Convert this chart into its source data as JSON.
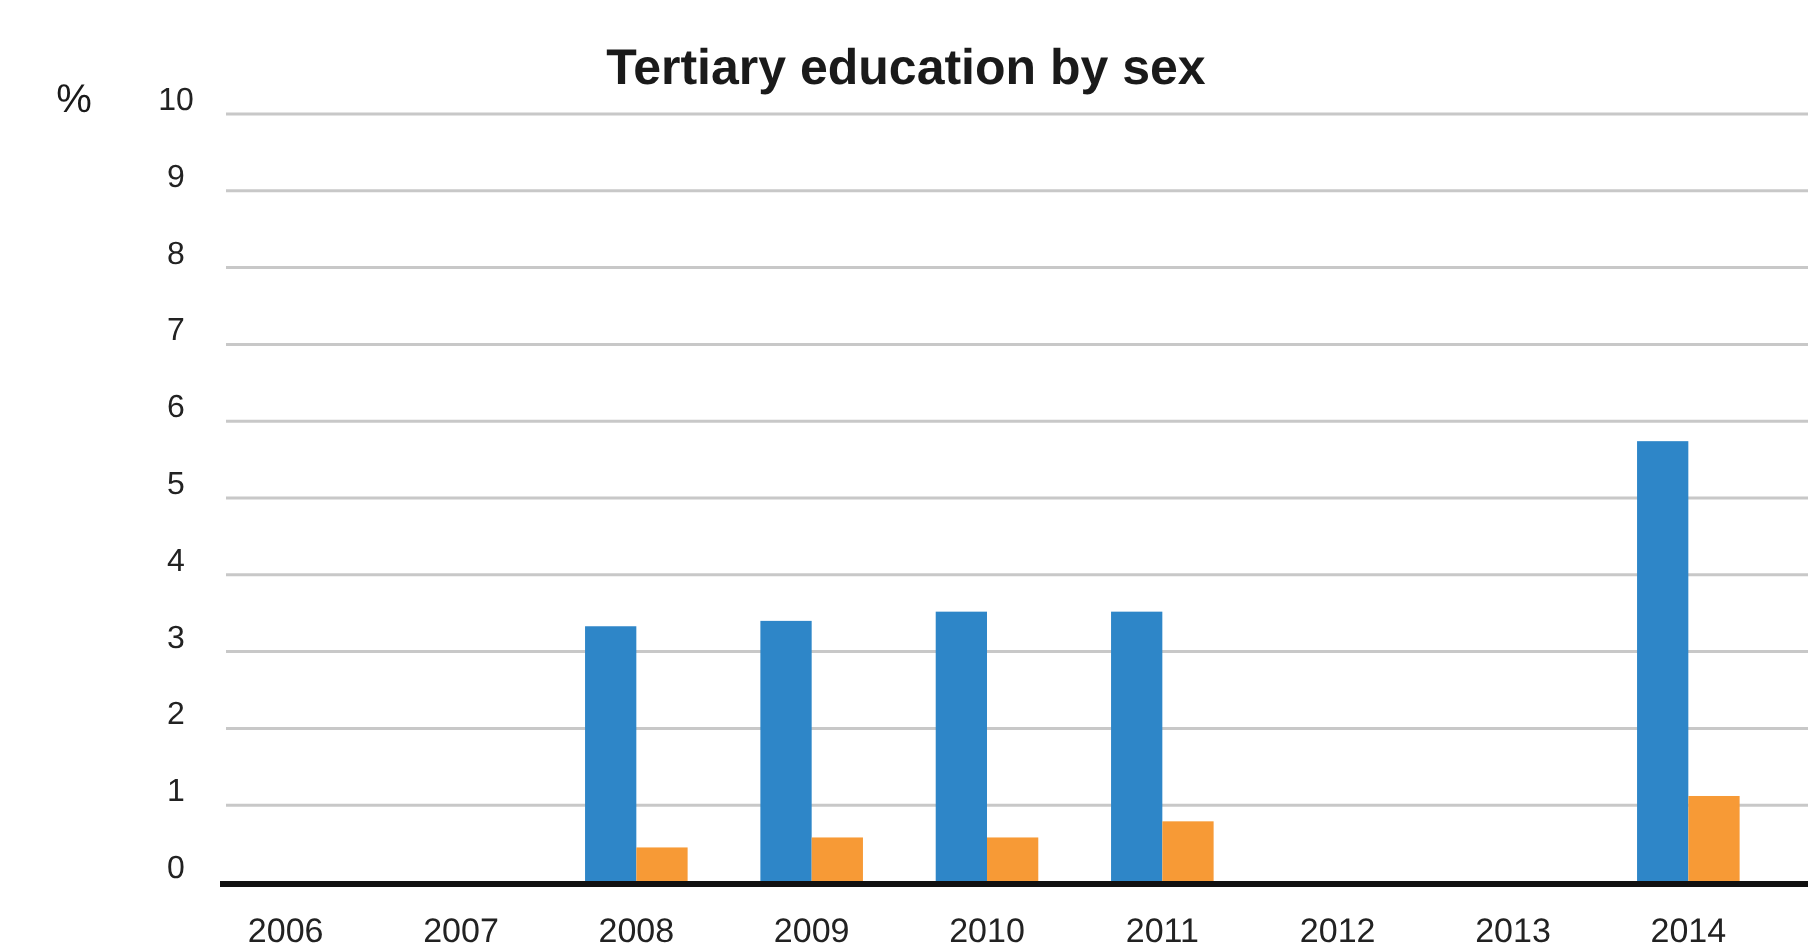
{
  "chart_data": {
    "type": "bar",
    "title": "Tertiary education by sex",
    "ylabel": "%",
    "categories": [
      "2006",
      "2007",
      "2008",
      "2009",
      "2010",
      "2011",
      "2012",
      "2013",
      "2014"
    ],
    "series": [
      {
        "color": "#2e86c8",
        "values": [
          null,
          null,
          3.33,
          3.4,
          3.52,
          3.52,
          null,
          null,
          5.74
        ]
      },
      {
        "color": "#f79a36",
        "values": [
          null,
          null,
          0.45,
          0.58,
          0.58,
          0.79,
          null,
          null,
          1.12
        ]
      }
    ],
    "ylim": [
      0,
      10
    ],
    "yticks": [
      0,
      1,
      2,
      3,
      4,
      5,
      6,
      7,
      8,
      9,
      10
    ],
    "grid": "y"
  }
}
